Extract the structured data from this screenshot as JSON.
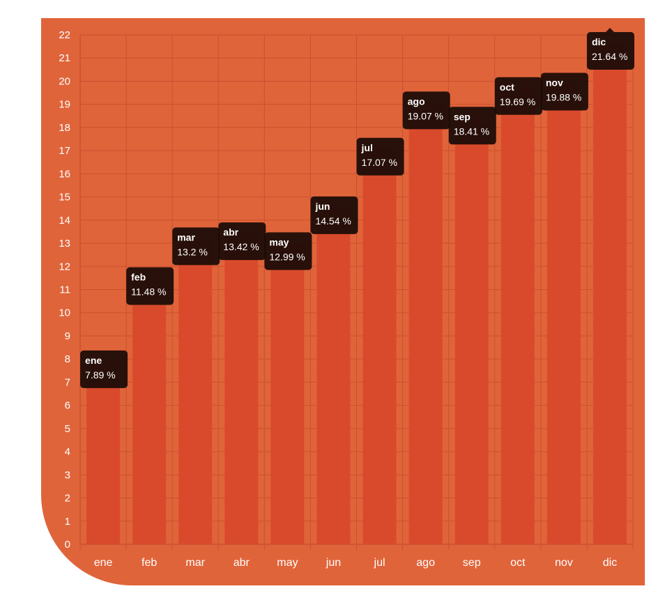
{
  "colors": {
    "background": "#e0643a",
    "bar": "#d94a2c",
    "grid": "#c9512f",
    "text": "#ffffff",
    "tooltip": "#1a0b06"
  },
  "chart_data": {
    "type": "bar",
    "title": "",
    "xlabel": "",
    "ylabel": "",
    "categories": [
      "ene",
      "feb",
      "mar",
      "abr",
      "may",
      "jun",
      "jul",
      "ago",
      "sep",
      "oct",
      "nov",
      "dic"
    ],
    "values": [
      7.89,
      11.48,
      13.2,
      13.42,
      12.99,
      14.54,
      17.07,
      19.07,
      18.41,
      19.69,
      19.88,
      21.64
    ],
    "value_labels": [
      "7.89 %",
      "11.48 %",
      "13.2 %",
      "13.42 %",
      "12.99 %",
      "14.54 %",
      "17.07 %",
      "19.07 %",
      "18.41 %",
      "19.69 %",
      "19.88 %",
      "21.64 %"
    ],
    "ylim": [
      0,
      22
    ],
    "yticks": [
      0,
      1,
      2,
      3,
      4,
      5,
      6,
      7,
      8,
      9,
      10,
      11,
      12,
      13,
      14,
      15,
      16,
      17,
      18,
      19,
      20,
      21,
      22
    ],
    "grid": true,
    "legend": "none"
  }
}
